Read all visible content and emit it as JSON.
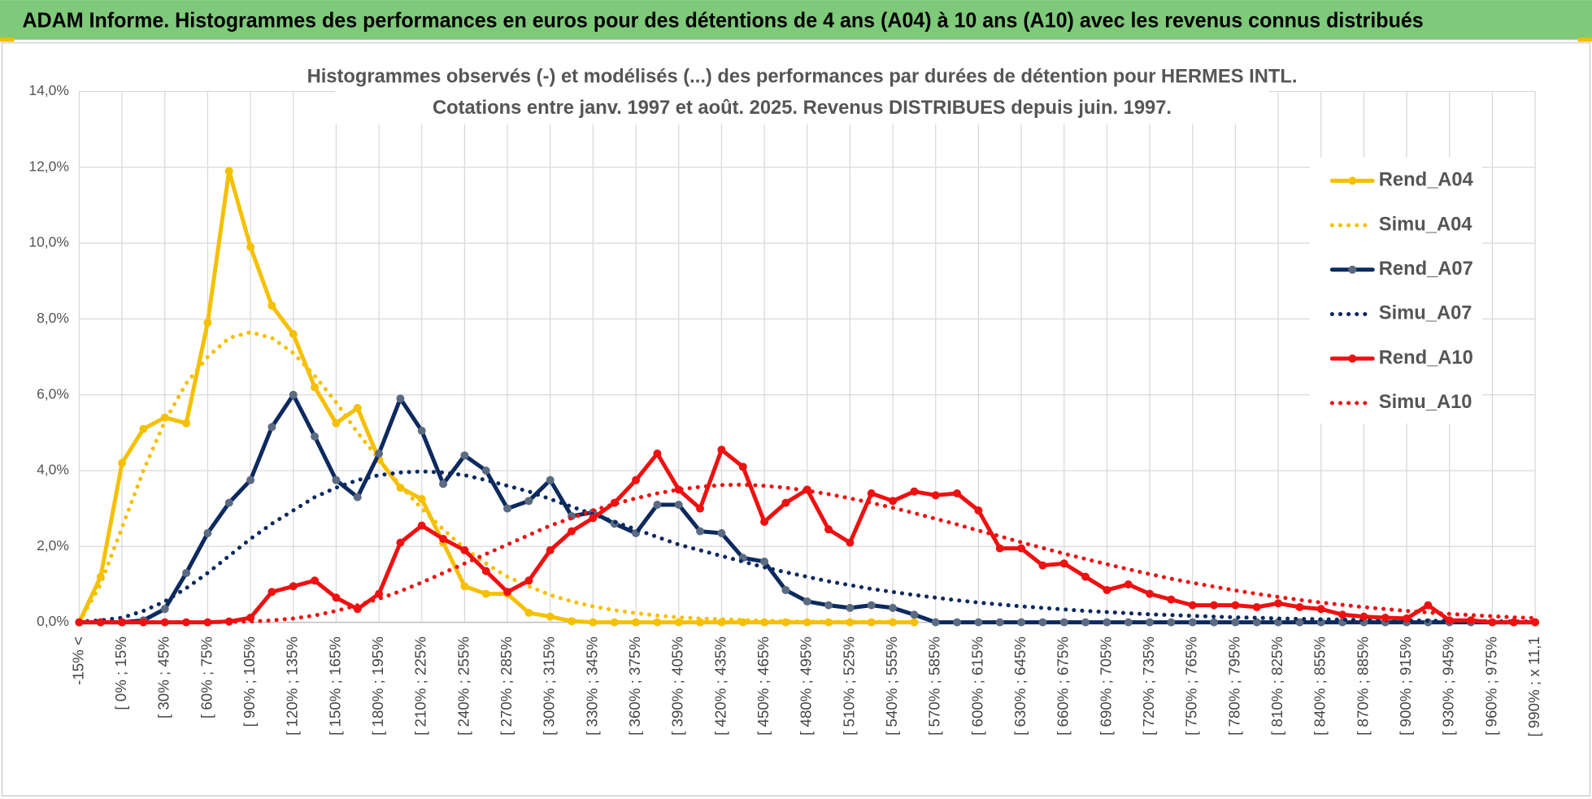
{
  "header": {
    "title": "ADAM Informe. Histogrammes des performances en euros pour des détentions de 4 ans (A04) à 10 ans (A10) avec les revenus connus distribués"
  },
  "chart_data": {
    "type": "line",
    "title": [
      "Histogrammes observés (-) et modélisés (...) des performances par durées de détention pour HERMES INTL.",
      "Cotations entre janv. 1997 et août. 2025. Revenus DISTRIBUES depuis juin. 1997."
    ],
    "categories": [
      "-15% <",
      null,
      "[ 0% ; 15%",
      null,
      "[ 30% ; 45%",
      null,
      "[ 60% ; 75%",
      null,
      "[ 90% ; 105%",
      null,
      "[ 120% ; 135%",
      null,
      "[ 150% ; 165%",
      null,
      "[ 180% ; 195%",
      null,
      "[ 210% ; 225%",
      null,
      "[ 240% ; 255%",
      null,
      "[ 270% ; 285%",
      null,
      "[ 300% ; 315%",
      null,
      "[ 330% ; 345%",
      null,
      "[ 360% ; 375%",
      null,
      "[ 390% ; 405%",
      null,
      "[ 420% ; 435%",
      null,
      "[ 450% ; 465%",
      null,
      "[ 480% ; 495%",
      null,
      "[ 510% ; 525%",
      null,
      "[ 540% ; 555%",
      null,
      "[ 570% ; 585%",
      null,
      "[ 600% ; 615%",
      null,
      "[ 630% ; 645%",
      null,
      "[ 660% ; 675%",
      null,
      "[ 690% ; 705%",
      null,
      "[ 720% ; 735%",
      null,
      "[ 750% ; 765%",
      null,
      "[ 780% ; 795%",
      null,
      "[ 810% ; 825%",
      null,
      "[ 840% ; 855%",
      null,
      "[ 870% ; 885%",
      null,
      "[ 900% ; 915%",
      null,
      "[ 930% ; 945%",
      null,
      "[ 960% ; 975%",
      null,
      "[ 990% ; x 11,1"
    ],
    "ylim": [
      0,
      14
    ],
    "yticks": [
      {
        "value": 0,
        "label": "0,0%"
      },
      {
        "value": 2,
        "label": "2,0%"
      },
      {
        "value": 4,
        "label": "4,0%"
      },
      {
        "value": 6,
        "label": "6,0%"
      },
      {
        "value": 8,
        "label": "8,0%"
      },
      {
        "value": 10,
        "label": "10,0%"
      },
      {
        "value": 12,
        "label": "12,0%"
      },
      {
        "value": 14,
        "label": "14,0%"
      }
    ],
    "grid": true,
    "legend": "right",
    "series": [
      {
        "name": "Rend_A04",
        "color": "#f5c000",
        "line_style": "solid",
        "marker_color": "#f5c000",
        "values": [
          0,
          1.2,
          4.2,
          5.1,
          5.4,
          5.25,
          7.9,
          11.9,
          9.9,
          8.35,
          7.6,
          6.2,
          5.25,
          5.65,
          4.3,
          3.55,
          3.25,
          2.1,
          0.95,
          0.75,
          0.75,
          0.25,
          0.15,
          0.03,
          0,
          0,
          0,
          0,
          0,
          0,
          0,
          0,
          0,
          0,
          0,
          0,
          0,
          0,
          0,
          0,
          null,
          null,
          null,
          null,
          null,
          null,
          null,
          null,
          null,
          null,
          null,
          null,
          null,
          null,
          null,
          null,
          null,
          null,
          null,
          null,
          null,
          null,
          null,
          null,
          null,
          null,
          null,
          null,
          null
        ]
      },
      {
        "name": "Simu_A04",
        "color": "#f5c000",
        "line_style": "dotted",
        "values": [
          0,
          1.0,
          2.5,
          4.0,
          5.3,
          6.3,
          7.0,
          7.5,
          7.65,
          7.5,
          7.1,
          6.5,
          5.8,
          5.0,
          4.3,
          3.6,
          3.0,
          2.45,
          1.95,
          1.55,
          1.2,
          0.95,
          0.72,
          0.55,
          0.42,
          0.32,
          0.24,
          0.18,
          0.13,
          0.1,
          0.08,
          0.06,
          0.04,
          0.03,
          0.02,
          0.015,
          0.01,
          0.01,
          0.01,
          null,
          null,
          null,
          null,
          null,
          null,
          null,
          null,
          null,
          null,
          null,
          null,
          null,
          null,
          null,
          null,
          null,
          null,
          null,
          null,
          null,
          null,
          null,
          null,
          null,
          null,
          null,
          null,
          null,
          null
        ]
      },
      {
        "name": "Rend_A07",
        "color": "#0c2a5e",
        "line_style": "solid",
        "marker_color": "#5b6b82",
        "values": [
          0,
          0,
          0,
          0.05,
          0.35,
          1.3,
          2.35,
          3.15,
          3.75,
          5.15,
          6.0,
          4.9,
          3.75,
          3.3,
          4.45,
          5.9,
          5.05,
          3.65,
          4.4,
          4.0,
          3.0,
          3.2,
          3.75,
          2.8,
          2.9,
          2.6,
          2.35,
          3.1,
          3.1,
          2.4,
          2.35,
          1.7,
          1.6,
          0.85,
          0.55,
          0.45,
          0.38,
          0.45,
          0.38,
          0.2,
          0,
          0,
          0,
          0,
          0,
          0,
          0,
          0,
          0,
          0,
          0,
          0,
          0,
          0,
          0,
          0,
          0,
          0,
          0,
          0,
          0,
          0,
          0,
          0,
          0,
          0,
          0,
          0,
          0
        ]
      },
      {
        "name": "Simu_A07",
        "color": "#0c2a5e",
        "line_style": "dotted",
        "values": [
          0.02,
          0.05,
          0.12,
          0.3,
          0.55,
          0.9,
          1.3,
          1.75,
          2.2,
          2.6,
          2.95,
          3.3,
          3.55,
          3.75,
          3.88,
          3.95,
          3.98,
          3.95,
          3.88,
          3.75,
          3.6,
          3.45,
          3.25,
          3.05,
          2.85,
          2.65,
          2.45,
          2.25,
          2.05,
          1.9,
          1.75,
          1.6,
          1.45,
          1.32,
          1.2,
          1.08,
          0.98,
          0.88,
          0.8,
          0.72,
          0.65,
          0.58,
          0.52,
          0.47,
          0.42,
          0.38,
          0.34,
          0.3,
          0.27,
          0.24,
          0.21,
          0.19,
          0.17,
          0.15,
          0.13,
          0.12,
          0.1,
          0.09,
          0.08,
          0.07,
          0.06,
          0.05,
          0.05,
          0.04,
          0.04,
          0.03,
          0.03,
          0.02,
          0.02
        ]
      },
      {
        "name": "Rend_A10",
        "color": "#ee1111",
        "line_style": "solid",
        "marker_color": "#ee1111",
        "values": [
          0,
          0,
          0,
          0,
          0,
          0,
          0,
          0.02,
          0.12,
          0.8,
          0.95,
          1.1,
          0.65,
          0.35,
          0.75,
          2.1,
          2.55,
          2.2,
          1.9,
          1.35,
          0.8,
          1.1,
          1.9,
          2.4,
          2.75,
          3.15,
          3.75,
          4.45,
          3.5,
          3.0,
          4.55,
          4.1,
          2.65,
          3.15,
          3.5,
          2.45,
          2.1,
          3.4,
          3.2,
          3.45,
          3.35,
          3.4,
          2.95,
          1.95,
          1.95,
          1.5,
          1.55,
          1.2,
          0.85,
          1.0,
          0.75,
          0.6,
          0.45,
          0.45,
          0.45,
          0.4,
          0.5,
          0.4,
          0.35,
          0.2,
          0.15,
          0.12,
          0.1,
          0.45,
          0.05,
          0.05,
          0,
          0,
          0
        ]
      },
      {
        "name": "Simu_A10",
        "color": "#ee1111",
        "line_style": "dotted",
        "values": [
          0,
          0,
          0,
          0,
          0,
          0,
          0,
          0.01,
          0.02,
          0.05,
          0.1,
          0.18,
          0.3,
          0.45,
          0.62,
          0.82,
          1.05,
          1.3,
          1.55,
          1.8,
          2.05,
          2.3,
          2.55,
          2.75,
          2.95,
          3.12,
          3.27,
          3.4,
          3.5,
          3.57,
          3.62,
          3.63,
          3.6,
          3.55,
          3.47,
          3.38,
          3.27,
          3.15,
          3.02,
          2.88,
          2.73,
          2.58,
          2.42,
          2.27,
          2.11,
          1.96,
          1.81,
          1.67,
          1.53,
          1.4,
          1.27,
          1.15,
          1.04,
          0.94,
          0.84,
          0.75,
          0.67,
          0.59,
          0.52,
          0.46,
          0.4,
          0.35,
          0.3,
          0.26,
          0.22,
          0.19,
          0.16,
          0.13,
          0.11
        ]
      }
    ]
  }
}
